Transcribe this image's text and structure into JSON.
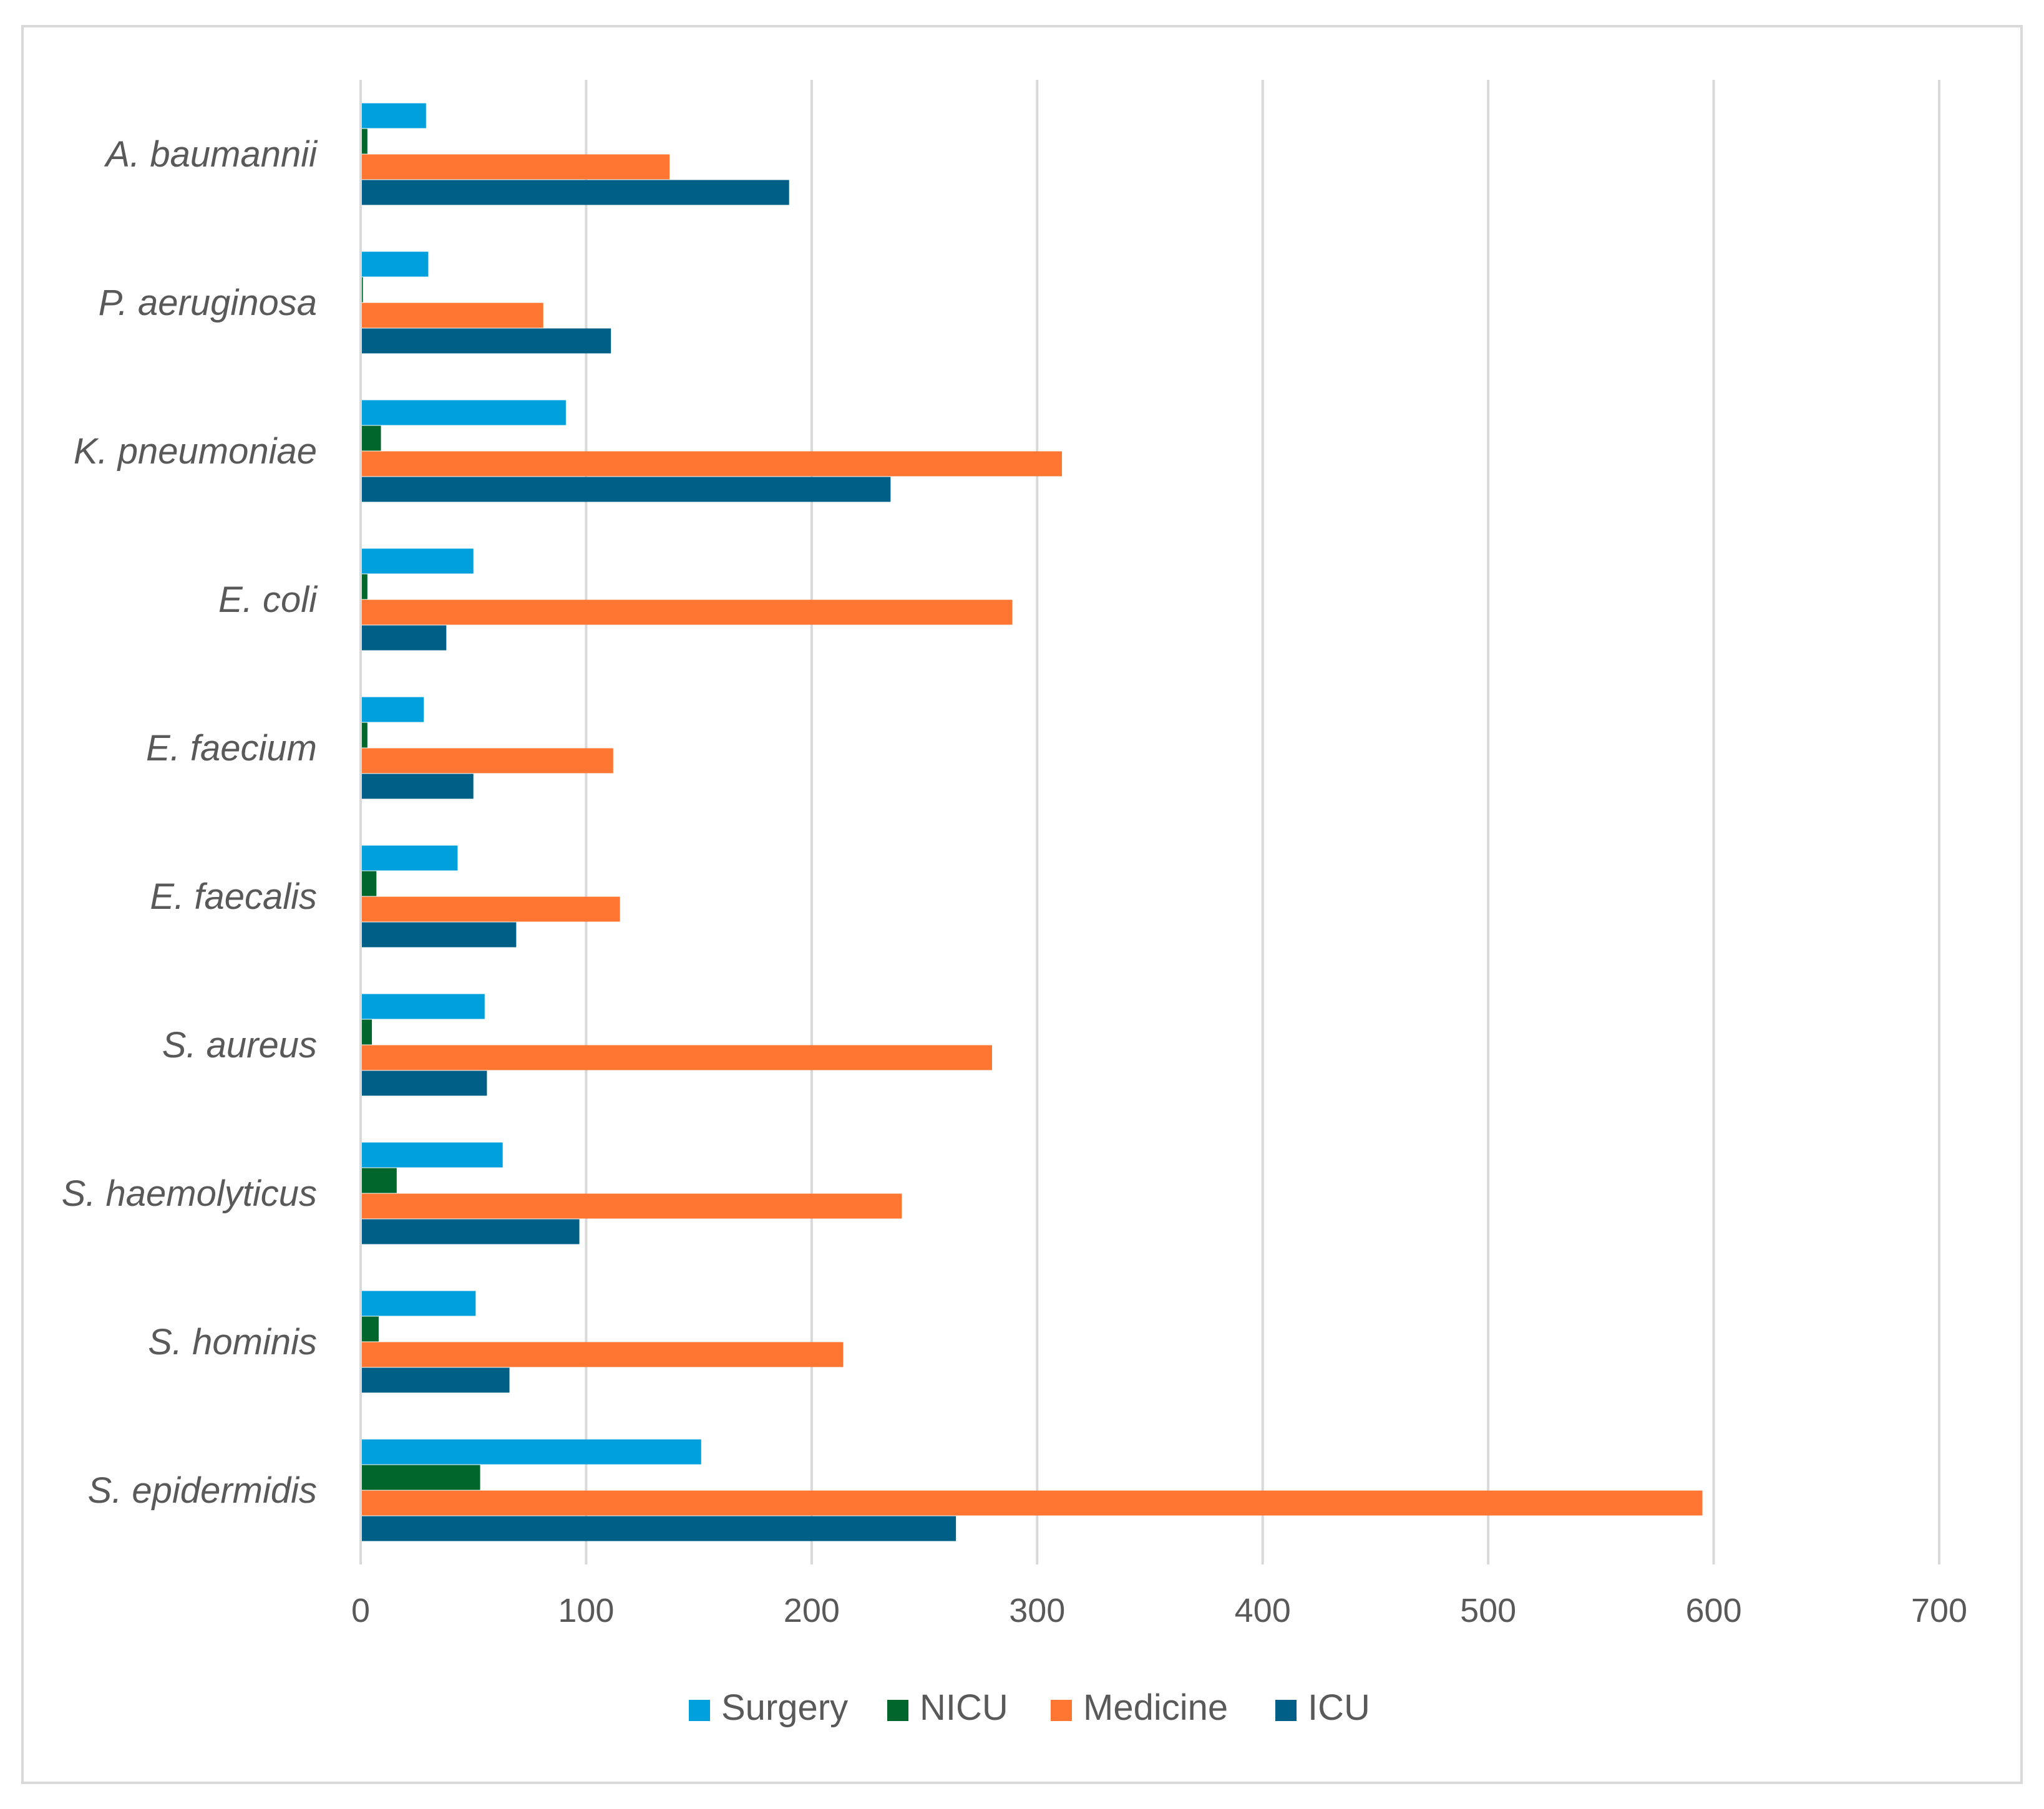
{
  "chart_data": {
    "type": "bar",
    "orientation": "horizontal",
    "title": "",
    "xlabel": "",
    "ylabel": "",
    "xlim": [
      0,
      700
    ],
    "x_ticks": [
      0,
      100,
      200,
      300,
      400,
      500,
      600,
      700
    ],
    "grid": "vertical",
    "legend_position": "bottom",
    "categories": [
      "A. baumannii",
      "P. aeruginosa",
      "K. pneumoniae",
      "E. coli",
      "E. faecium",
      "E. faecalis",
      "S. aureus",
      "S. haemolyticus",
      "S. hominis",
      "S. epidermidis"
    ],
    "series": [
      {
        "name": "Surgery",
        "color": "#00a0dc",
        "values": [
          29,
          30,
          91,
          50,
          28,
          43,
          55,
          63,
          51,
          151
        ]
      },
      {
        "name": "NICU",
        "color": "#00662c",
        "values": [
          3,
          1,
          9,
          3,
          3,
          7,
          5,
          16,
          8,
          53
        ]
      },
      {
        "name": "Medicine",
        "color": "#ff7632",
        "values": [
          137,
          81,
          311,
          289,
          112,
          115,
          280,
          240,
          214,
          595
        ]
      },
      {
        "name": "ICU",
        "color": "#005f87",
        "values": [
          190,
          111,
          235,
          38,
          50,
          69,
          56,
          97,
          66,
          264
        ]
      }
    ]
  }
}
